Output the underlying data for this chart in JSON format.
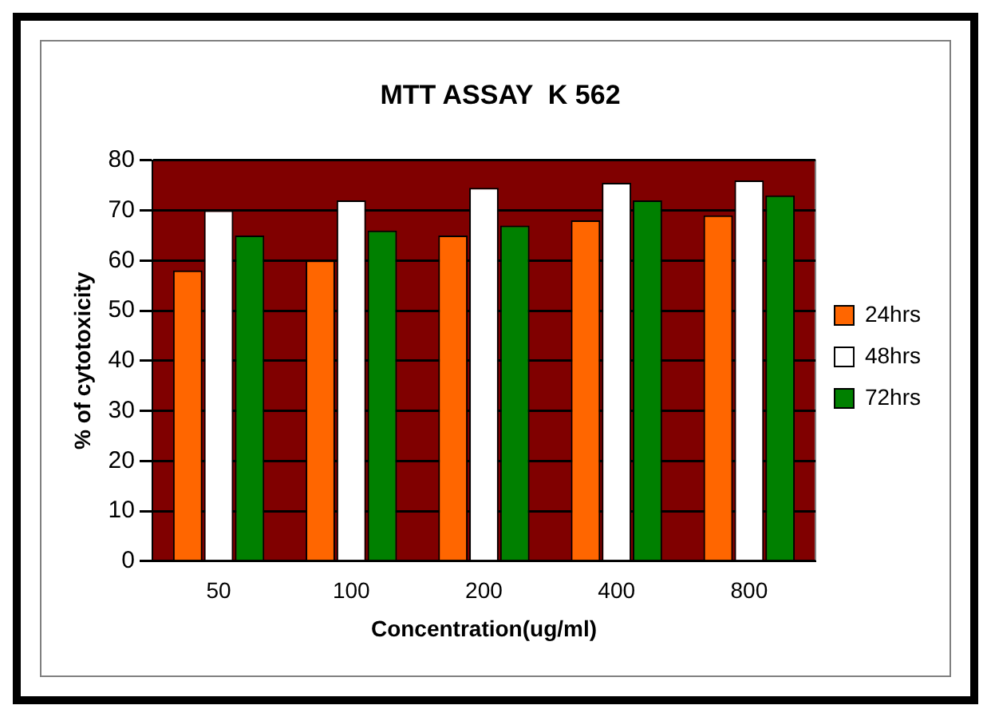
{
  "chart_data": {
    "type": "bar",
    "title": "MTT ASSAY  K 562",
    "xlabel": "Concentration(ug/ml)",
    "ylabel": "% of cytotoxicity",
    "categories": [
      "50",
      "100",
      "200",
      "400",
      "800"
    ],
    "series": [
      {
        "name": "24hrs",
        "color": "#ff6600",
        "values": [
          58,
          60,
          65,
          68,
          69
        ]
      },
      {
        "name": "48hrs",
        "color": "#ffffff",
        "values": [
          70,
          72,
          74.5,
          75.5,
          76
        ]
      },
      {
        "name": "72hrs",
        "color": "#008000",
        "values": [
          65,
          66,
          67,
          72,
          73
        ]
      }
    ],
    "ylim": [
      0,
      80
    ],
    "yticks": [
      0,
      10,
      20,
      30,
      40,
      50,
      60,
      70,
      80
    ],
    "grid": "y",
    "legend": "right"
  }
}
